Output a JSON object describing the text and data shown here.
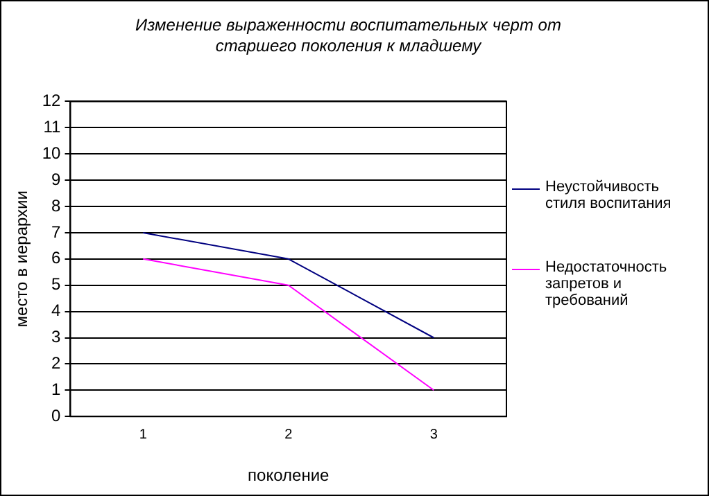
{
  "chart_data": {
    "type": "line",
    "title": "Изменение выраженности воспитательных черт от старшего поколения к младшему",
    "xlabel": "поколение",
    "ylabel": "место в иерархии",
    "categories": [
      "1",
      "2",
      "3"
    ],
    "series": [
      {
        "name": "Неустойчивость стиля воспитания",
        "color": "#000080",
        "values": [
          7,
          6,
          3
        ]
      },
      {
        "name": "Недостаточность запретов и требований",
        "color": "#ff00ff",
        "values": [
          6,
          5,
          1
        ]
      }
    ],
    "ylim": [
      0,
      12
    ],
    "yticks": [
      0,
      1,
      2,
      3,
      4,
      5,
      6,
      7,
      8,
      9,
      10,
      11,
      12
    ],
    "grid": "y",
    "legend": "right",
    "marker": "none",
    "line_style": "solid"
  }
}
